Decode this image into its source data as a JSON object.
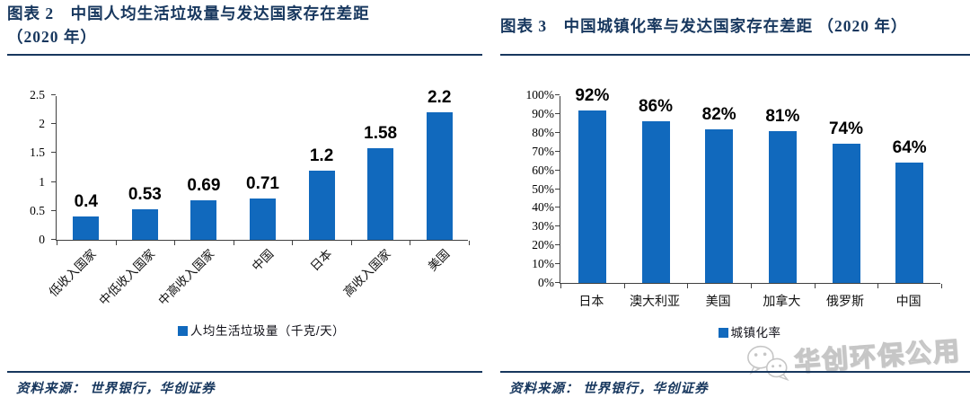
{
  "panels": [
    {
      "title": "图表 2　中国人均生活垃圾量与发达国家存在差距",
      "title_suffix": "（2020 年）",
      "source_prefix": "资料来源：",
      "source": "世界银行，华创证券"
    },
    {
      "title": "图表 3　中国城镇化率与发达国家存在差距",
      "title_suffix": "（2020 年）",
      "source_prefix": "资料来源：",
      "source": "世界银行，华创证券"
    }
  ],
  "chart_data": [
    {
      "type": "bar",
      "title": "中国人均生活垃圾量与发达国家存在差距（2020 年）",
      "categories": [
        "低收入国家",
        "中低收入国家",
        "中高收入国家",
        "中国",
        "日本",
        "高收入国家",
        "美国"
      ],
      "values": [
        0.4,
        0.53,
        0.69,
        0.71,
        1.2,
        1.58,
        2.2
      ],
      "value_labels": [
        "0.4",
        "0.53",
        "0.69",
        "0.71",
        "1.2",
        "1.58",
        "2.2"
      ],
      "xlabel": "",
      "ylabel": "",
      "ylim": [
        0,
        2.5
      ],
      "yticks": [
        "0",
        "0.5",
        "1",
        "1.5",
        "2",
        "2.5"
      ],
      "grid": false,
      "legend": "人均生活垃圾量（千克/天）",
      "legend_position": "bottom",
      "bar_color": "#1169BD"
    },
    {
      "type": "bar",
      "title": "中国城镇化率与发达国家存在差距（2020 年）",
      "categories": [
        "日本",
        "澳大利亚",
        "美国",
        "加拿大",
        "俄罗斯",
        "中国"
      ],
      "values": [
        92,
        86,
        82,
        81,
        74,
        64
      ],
      "value_labels": [
        "92%",
        "86%",
        "82%",
        "81%",
        "74%",
        "64%"
      ],
      "xlabel": "",
      "ylabel": "",
      "ylim": [
        0,
        100
      ],
      "yticks": [
        "0%",
        "10%",
        "20%",
        "30%",
        "40%",
        "50%",
        "60%",
        "70%",
        "80%",
        "90%",
        "100%"
      ],
      "grid": false,
      "legend": "城镇化率",
      "legend_position": "bottom",
      "bar_color": "#1169BD"
    }
  ],
  "watermark": {
    "text": "华创环保公用",
    "icon": "wechat-icon"
  },
  "colors": {
    "title_navy": "#17375E",
    "divider_navy": "#17375E",
    "bar_blue": "#1169BD",
    "axis_gray": "#404040",
    "watermark_gray": "#C6C6C6"
  }
}
